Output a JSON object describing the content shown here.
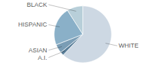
{
  "chart_data": {
    "type": "pie",
    "categories": [
      "WHITE",
      "A.I.",
      "ASIAN",
      "HISPANIC",
      "BLACK"
    ],
    "values": [
      62,
      2,
      5,
      22,
      9
    ],
    "colors": [
      "#cdd8e3",
      "#5a7f9a",
      "#7a9db5",
      "#8ab0c8",
      "#b8cfd9"
    ]
  }
}
